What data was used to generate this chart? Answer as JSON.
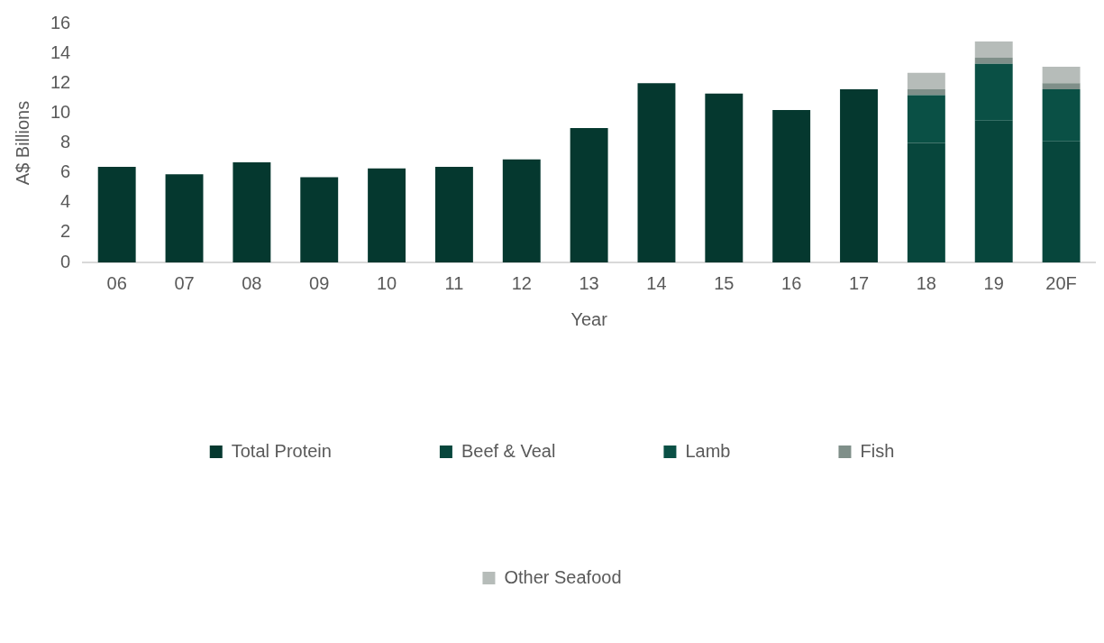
{
  "chart_data": {
    "type": "bar",
    "stacked": true,
    "xlabel": "Year",
    "ylabel": "A$ Billions",
    "categories": [
      "06",
      "07",
      "08",
      "09",
      "10",
      "11",
      "12",
      "13",
      "14",
      "15",
      "16",
      "17",
      "18",
      "19",
      "20F"
    ],
    "series": [
      {
        "name": "Total Protein",
        "color": "#05382f",
        "values": [
          6.4,
          5.9,
          6.7,
          5.7,
          6.3,
          6.4,
          6.9,
          9.0,
          12.0,
          11.3,
          10.2,
          11.6,
          null,
          null,
          null
        ]
      },
      {
        "name": "Beef & Veal",
        "color": "#07463c",
        "values": [
          null,
          null,
          null,
          null,
          null,
          null,
          null,
          null,
          null,
          null,
          null,
          null,
          8.0,
          9.5,
          8.1
        ]
      },
      {
        "name": "Lamb",
        "color": "#0a5045",
        "values": [
          null,
          null,
          null,
          null,
          null,
          null,
          null,
          null,
          null,
          null,
          null,
          null,
          3.2,
          3.8,
          3.5
        ]
      },
      {
        "name": "Fish",
        "color": "#7f8f89",
        "values": [
          null,
          null,
          null,
          null,
          null,
          null,
          null,
          null,
          null,
          null,
          null,
          null,
          0.4,
          0.4,
          0.4
        ]
      },
      {
        "name": "Other Seafood",
        "color": "#b6bcb9",
        "values": [
          null,
          null,
          null,
          null,
          null,
          null,
          null,
          null,
          null,
          null,
          null,
          null,
          1.1,
          1.1,
          1.1
        ]
      }
    ],
    "ylim": [
      0,
      16
    ],
    "yticks": [
      0,
      2,
      4,
      6,
      8,
      10,
      12,
      14,
      16
    ],
    "grid": false,
    "legend": "bottom"
  }
}
